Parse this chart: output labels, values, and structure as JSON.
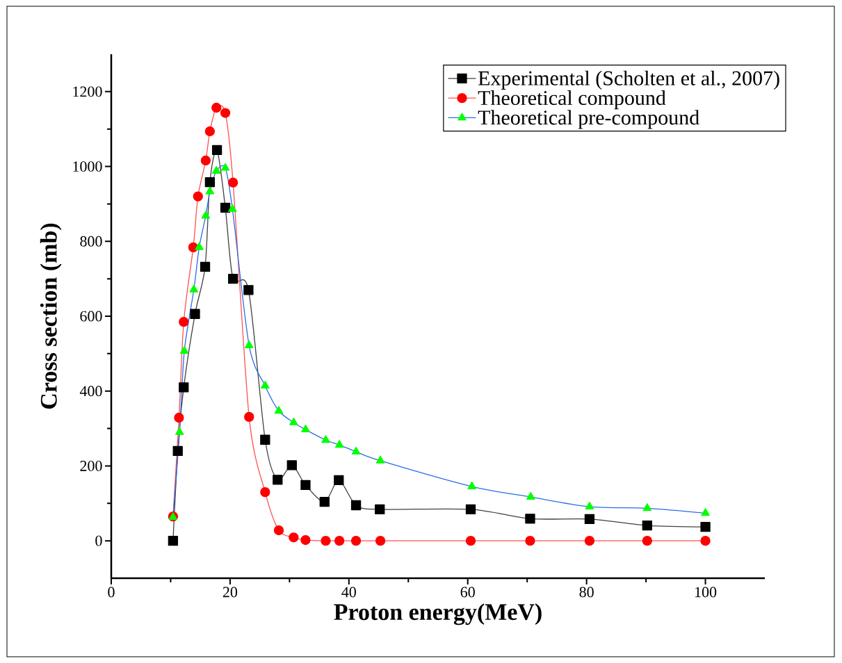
{
  "chart_data": {
    "type": "line",
    "xlabel": "Proton energy(MeV)",
    "ylabel": "Cross section (mb)",
    "xlim": [
      0,
      110
    ],
    "ylim": [
      -100,
      1300
    ],
    "xticks": [
      0,
      20,
      40,
      60,
      80,
      100
    ],
    "yticks": [
      0,
      200,
      400,
      600,
      800,
      1000,
      1200
    ],
    "legend": "top right",
    "grid": false,
    "line_style": "solid",
    "series": [
      {
        "name": "Experimental (Scholten et al., 2007)",
        "color": "#000000",
        "marker": "square",
        "x": [
          10.4,
          11.2,
          12.2,
          14.1,
          15.8,
          16.6,
          17.8,
          19.2,
          20.5,
          23.1,
          25.9,
          28.0,
          30.4,
          32.7,
          35.9,
          38.3,
          41.2,
          45.2,
          60.5,
          70.5,
          80.5,
          90.2,
          100
        ],
        "values": [
          0,
          240,
          410,
          606,
          732,
          958,
          1044,
          890,
          700,
          670,
          270,
          163,
          202,
          149,
          104,
          162,
          95,
          84,
          84,
          59,
          58,
          41,
          37
        ]
      },
      {
        "name": "Theoretical compound",
        "color": "#ff0000",
        "marker": "circle",
        "x": [
          10.4,
          11.4,
          12.2,
          13.8,
          14.6,
          15.9,
          16.6,
          17.7,
          19.2,
          20.5,
          23.2,
          25.9,
          28.2,
          30.7,
          32.7,
          36.1,
          38.4,
          41.2,
          45.3,
          60.5,
          70.5,
          80.5,
          90.2,
          100
        ],
        "values": [
          65,
          329,
          585,
          784,
          920,
          1016,
          1094,
          1157,
          1143,
          957,
          331,
          130,
          28,
          9,
          2,
          0,
          0,
          0,
          0,
          0,
          0,
          0,
          0,
          0
        ]
      },
      {
        "name": "Theoretical pre-compound",
        "color": "#00ff00",
        "marker": "triangle",
        "x": [
          10.4,
          11.5,
          12.3,
          13.9,
          14.8,
          15.9,
          16.6,
          17.7,
          19.2,
          20.4,
          23.2,
          25.9,
          28.2,
          30.7,
          32.7,
          36.1,
          38.4,
          41.2,
          45.3,
          60.7,
          70.6,
          80.5,
          90.2,
          100
        ],
        "values": [
          63,
          290,
          507,
          671,
          784,
          868,
          933,
          988,
          996,
          886,
          522,
          414,
          347,
          316,
          297,
          269,
          256,
          238,
          214,
          145,
          117,
          91,
          87,
          74
        ]
      }
    ]
  }
}
